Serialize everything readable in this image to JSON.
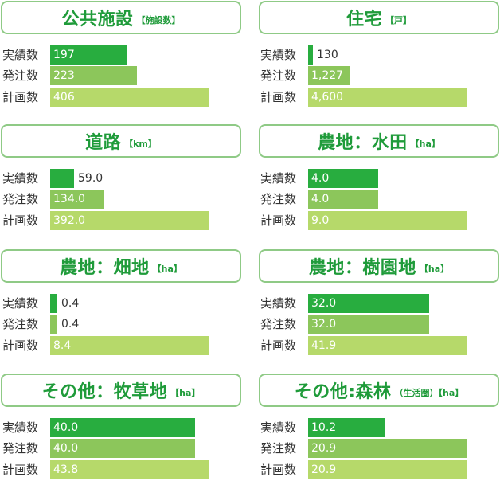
{
  "row_labels": [
    "実績数",
    "発注数",
    "計画数"
  ],
  "colors": [
    "#28ad3f",
    "#8cc65b",
    "#b6d96a"
  ],
  "chart_data": [
    {
      "type": "bar",
      "title": "公共施設",
      "unit": "【施設数】",
      "categories": [
        "実績数",
        "発注数",
        "計画数"
      ],
      "values": [
        197,
        223,
        406
      ],
      "labels": [
        "197",
        "223",
        "406"
      ],
      "max": 406
    },
    {
      "type": "bar",
      "title": "住宅",
      "unit": "【戸】",
      "categories": [
        "実績数",
        "発注数",
        "計画数"
      ],
      "values": [
        130,
        1227,
        4600
      ],
      "labels": [
        "130",
        "1,227",
        "4,600"
      ],
      "max": 4600
    },
    {
      "type": "bar",
      "title": "道路",
      "unit": "【km】",
      "categories": [
        "実績数",
        "発注数",
        "計画数"
      ],
      "values": [
        59.0,
        134.0,
        392.0
      ],
      "labels": [
        "59.0",
        "134.0",
        "392.0"
      ],
      "max": 392.0
    },
    {
      "type": "bar",
      "title": "農地：水田",
      "unit": "【ha】",
      "categories": [
        "実績数",
        "発注数",
        "計画数"
      ],
      "values": [
        4.0,
        4.0,
        9.0
      ],
      "labels": [
        "4.0",
        "4.0",
        "9.0"
      ],
      "max": 9.0
    },
    {
      "type": "bar",
      "title": "農地：畑地",
      "unit": "【ha】",
      "categories": [
        "実績数",
        "発注数",
        "計画数"
      ],
      "values": [
        0.4,
        0.4,
        8.4
      ],
      "labels": [
        "0.4",
        "0.4",
        "8.4"
      ],
      "max": 8.4
    },
    {
      "type": "bar",
      "title": "農地：樹園地",
      "unit": "【ha】",
      "categories": [
        "実績数",
        "発注数",
        "計画数"
      ],
      "values": [
        32.0,
        32.0,
        41.9
      ],
      "labels": [
        "32.0",
        "32.0",
        "41.9"
      ],
      "max": 41.9
    },
    {
      "type": "bar",
      "title": "その他：牧草地",
      "unit": "【ha】",
      "categories": [
        "実績数",
        "発注数",
        "計画数"
      ],
      "values": [
        40.0,
        40.0,
        43.8
      ],
      "labels": [
        "40.0",
        "40.0",
        "43.8"
      ],
      "max": 43.8
    },
    {
      "type": "bar",
      "title": "その他:森林",
      "unit": "（生活圏）【ha】",
      "categories": [
        "実績数",
        "発注数",
        "計画数"
      ],
      "values": [
        10.2,
        20.9,
        20.9
      ],
      "labels": [
        "10.2",
        "20.9",
        "20.9"
      ],
      "max": 20.9
    }
  ]
}
